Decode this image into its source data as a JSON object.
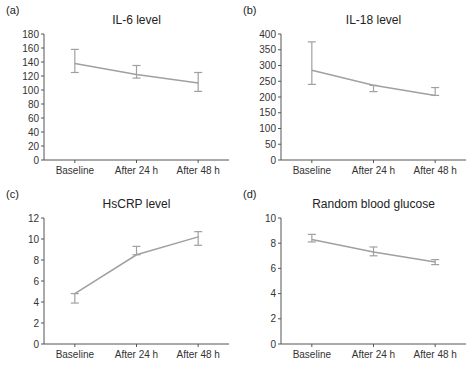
{
  "chart_data": [
    {
      "type": "line",
      "title": "IL-6 level",
      "annotations": [
        "(a)"
      ],
      "categories": [
        "Baseline",
        "After 24 h",
        "After 48 h"
      ],
      "values": [
        138,
        122,
        110
      ],
      "yerr_above": [
        20,
        13,
        15
      ],
      "yerr_below": [
        13,
        5,
        12
      ],
      "ylim": [
        0,
        180
      ],
      "yticks": [
        0,
        20,
        40,
        60,
        80,
        100,
        120,
        140,
        160,
        180
      ],
      "color": "#a0a0a0"
    },
    {
      "type": "line",
      "title": "IL-18 level",
      "annotations": [
        "(b)"
      ],
      "categories": [
        "Baseline",
        "After 24 h",
        "After 48 h"
      ],
      "values": [
        285,
        237,
        205
      ],
      "yerr_above": [
        90,
        0,
        25
      ],
      "yerr_below": [
        45,
        20,
        0
      ],
      "ylim": [
        0,
        400
      ],
      "yticks": [
        0,
        50,
        100,
        150,
        200,
        250,
        300,
        350,
        400
      ],
      "color": "#a0a0a0"
    },
    {
      "type": "line",
      "title": "HsCRP level",
      "annotations": [
        "(c)"
      ],
      "categories": [
        "Baseline",
        "After 24 h",
        "After 48 h"
      ],
      "values": [
        4.8,
        8.5,
        10.2
      ],
      "yerr_above": [
        0,
        0.8,
        0.5
      ],
      "yerr_below": [
        0.9,
        0,
        0.8
      ],
      "ylim": [
        0,
        12
      ],
      "yticks": [
        0,
        2,
        4,
        6,
        8,
        10,
        12
      ],
      "color": "#a0a0a0"
    },
    {
      "type": "line",
      "title": "Random blood glucose",
      "annotations": [
        "(d)"
      ],
      "categories": [
        "Baseline",
        "After 24 h",
        "After 48 h"
      ],
      "values": [
        8.3,
        7.3,
        6.5
      ],
      "yerr_above": [
        0.4,
        0.4,
        0.2
      ],
      "yerr_below": [
        0.2,
        0.3,
        0.2
      ],
      "ylim": [
        0,
        10
      ],
      "yticks": [
        0,
        2,
        4,
        6,
        8,
        10
      ],
      "color": "#a0a0a0"
    }
  ]
}
